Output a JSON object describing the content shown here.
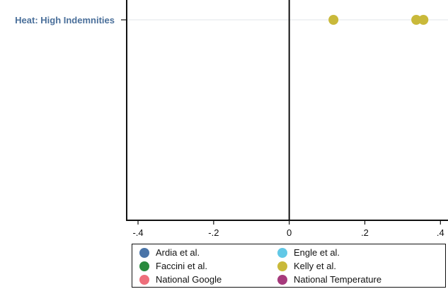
{
  "chart_data": {
    "type": "scatter",
    "xlim": [
      -0.43,
      0.42
    ],
    "x_ticks": [
      -0.4,
      -0.2,
      0,
      0.2,
      0.4
    ],
    "x_tick_labels": [
      "-.4",
      "-.2",
      "0",
      ".2",
      ".4"
    ],
    "categories": [
      "Heat: High Indemnities"
    ],
    "grid": true,
    "reference_line_x": 0,
    "legend_position": "bottom",
    "series": [
      {
        "name": "Ardia et al.",
        "color": "#4a74a8",
        "points": []
      },
      {
        "name": "Engle et al.",
        "color": "#62c8e6",
        "points": []
      },
      {
        "name": "Faccini et al.",
        "color": "#2a8a3e",
        "points": []
      },
      {
        "name": "Kelly et al.",
        "color": "#c9b93a",
        "points": [
          {
            "category": "Heat: High Indemnities",
            "x": 0.117
          },
          {
            "category": "Heat: High Indemnities",
            "x": 0.336
          },
          {
            "category": "Heat: High Indemnities",
            "x": 0.355
          }
        ]
      },
      {
        "name": "National Google",
        "color": "#ee6f7b",
        "points": []
      },
      {
        "name": "National Temperature",
        "color": "#a63a7c",
        "points": []
      }
    ]
  }
}
